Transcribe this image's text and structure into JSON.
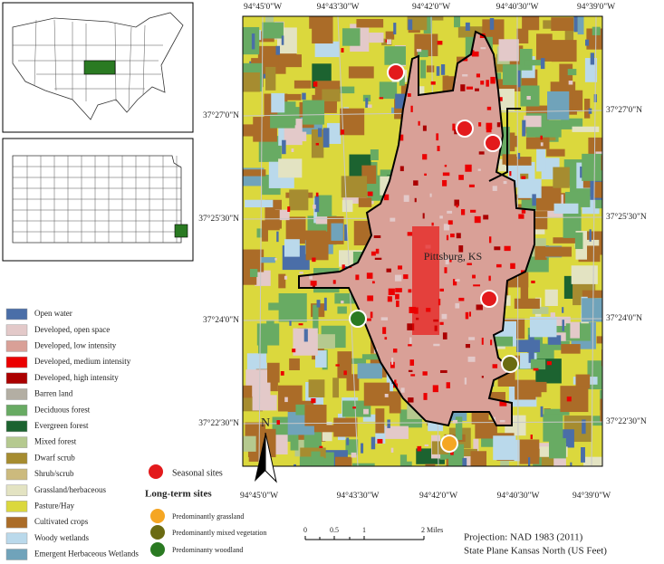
{
  "map": {
    "top_labels": [
      "94°45'0\"W",
      "94°43'30\"W",
      "94°42'0\"W",
      "94°40'30\"W",
      "94°39'0\"W"
    ],
    "bottom_labels": [
      "94°45'0\"W",
      "94°43'30\"W",
      "94°42'0\"W",
      "94°40'30\"W",
      "94°39'0\"W"
    ],
    "left_labels": [
      "37°27'0\"N",
      "37°25'30\"N",
      "37°24'0\"N",
      "37°22'30\"N"
    ],
    "right_labels": [
      "37°27'0\"N",
      "37°25'30\"N",
      "37°24'0\"N",
      "37°22'30\"N"
    ],
    "city_label": "Pittsburg, KS",
    "north_label": "N"
  },
  "legend": {
    "items": [
      {
        "label": "Open water",
        "color": "#4a6ea8"
      },
      {
        "label": "Developed, open space",
        "color": "#e3c9c9"
      },
      {
        "label": "Developed, low intensity",
        "color": "#d9a097"
      },
      {
        "label": "Developed, medium intensity",
        "color": "#eb0000"
      },
      {
        "label": "Developed, high intensity",
        "color": "#ab0000"
      },
      {
        "label": "Barren land",
        "color": "#b3aea3"
      },
      {
        "label": "Deciduous forest",
        "color": "#68ab63"
      },
      {
        "label": "Evergreen forest",
        "color": "#1c6330"
      },
      {
        "label": "Mixed forest",
        "color": "#b5c98f"
      },
      {
        "label": "Dwarf scrub",
        "color": "#a68c30"
      },
      {
        "label": "Shrub/scrub",
        "color": "#ccba7d"
      },
      {
        "label": "Grassland/herbaceous",
        "color": "#e3e3c2"
      },
      {
        "label": "Pasture/Hay",
        "color": "#dbd83d"
      },
      {
        "label": "Cultivated crops",
        "color": "#ab6c28"
      },
      {
        "label": "Woody wetlands",
        "color": "#bad9eb"
      },
      {
        "label": "Emergent Herbaceous Wetlands",
        "color": "#70a3ba"
      }
    ],
    "seasonal": {
      "label": "Seasonal sites",
      "color": "#e31a1c"
    },
    "long_term_title": "Long-term sites",
    "long_term": [
      {
        "label": "Predominantly grassland",
        "color": "#f5a623"
      },
      {
        "label": "Predominantly mixed vegetation",
        "color": "#6b6b12"
      },
      {
        "label": "Predominanty woodland",
        "color": "#2a7a22"
      }
    ]
  },
  "scale_bar": {
    "labels": [
      "0",
      "0.5",
      "1",
      "2 Miles"
    ]
  },
  "projection": [
    "Projection: NAD 1983 (2011)",
    "State Plane Kansas North (US Feet)"
  ]
}
